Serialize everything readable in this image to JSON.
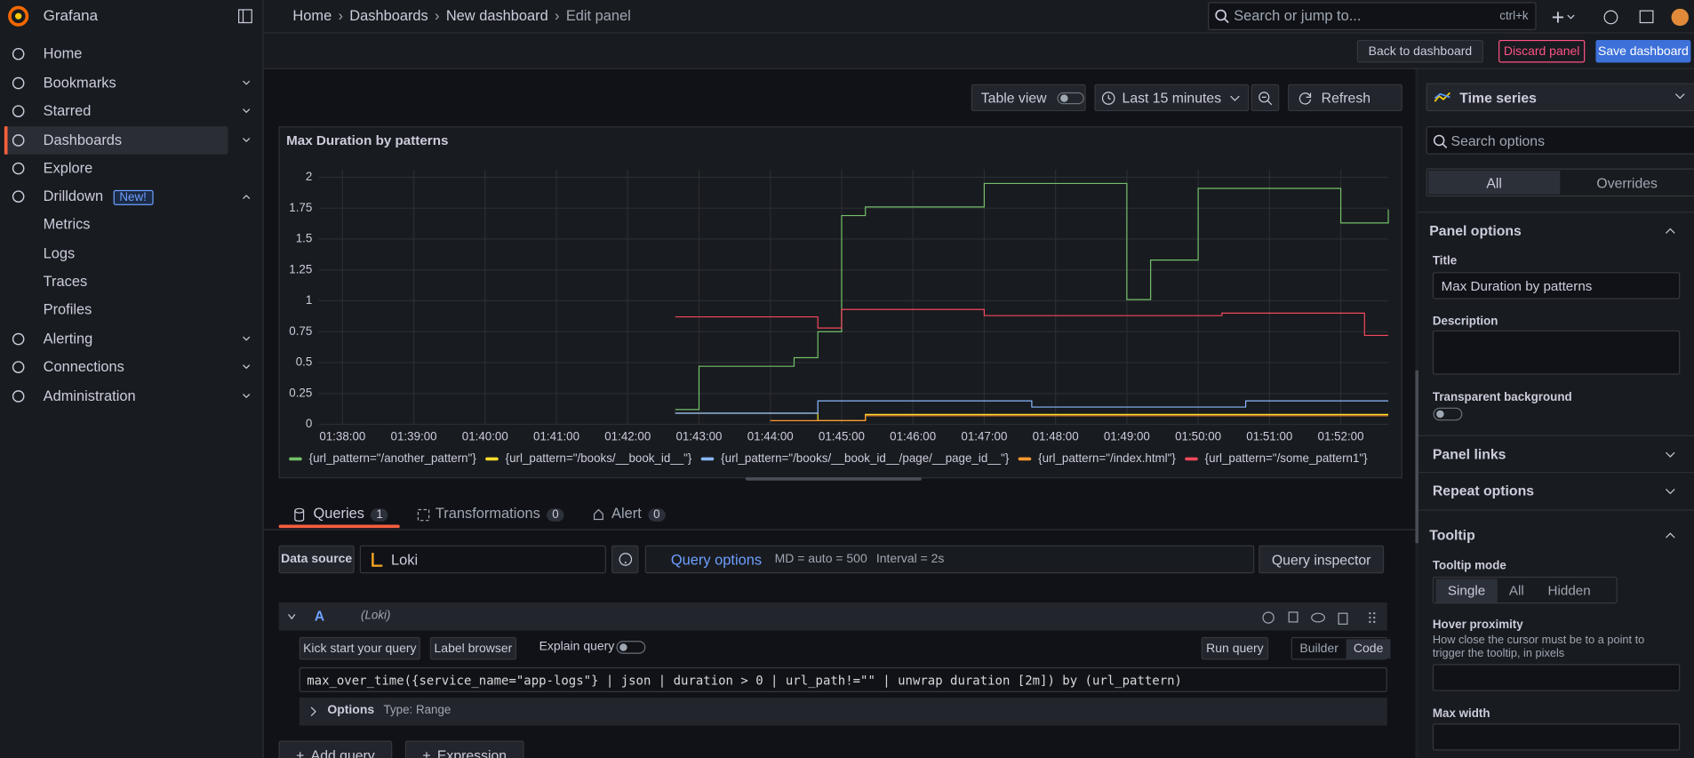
{
  "sidebar": {
    "brand": "Grafana",
    "items": [
      "Home",
      "Bookmarks",
      "Starred",
      "Dashboards",
      "Explore",
      "Drilldown",
      "Metrics",
      "Logs",
      "Traces",
      "Profiles",
      "Alerting",
      "Connections",
      "Administration"
    ],
    "badge": "New!"
  },
  "topbar": {
    "breadcrumbs": [
      "Home",
      "Dashboards",
      "New dashboard",
      "Edit panel"
    ],
    "search": "Search or jump to...",
    "shortcut": "ctrl+k"
  },
  "actions": {
    "back": "Back to dashboard",
    "discard": "Discard panel",
    "save": "Save dashboard"
  },
  "panel_toolbar": {
    "table_view": "Table view",
    "time_range": "Last 15 minutes",
    "refresh": "Refresh"
  },
  "chart_data": {
    "type": "line",
    "title": "Max Duration by patterns",
    "line_interpolation": "stepAfter",
    "grid": true,
    "legend": "bottom-left",
    "x": [
      "01:42:40",
      "01:43:00",
      "01:43:20",
      "01:43:40",
      "01:44:00",
      "01:44:20",
      "01:44:40",
      "01:45:00",
      "01:45:20",
      "01:45:40",
      "01:46:00",
      "01:46:20",
      "01:46:40",
      "01:47:00",
      "01:47:20",
      "01:47:40",
      "01:48:00",
      "01:48:20",
      "01:48:40",
      "01:49:00",
      "01:49:20",
      "01:49:40",
      "01:50:00",
      "01:50:20",
      "01:50:40",
      "01:51:00",
      "01:51:20",
      "01:51:40",
      "01:52:00",
      "01:52:20",
      "01:52:40"
    ],
    "xlim": [
      "01:37:40",
      "01:52:40"
    ],
    "xticks": [
      "01:38:00",
      "01:39:00",
      "01:40:00",
      "01:41:00",
      "01:42:00",
      "01:43:00",
      "01:44:00",
      "01:45:00",
      "01:46:00",
      "01:47:00",
      "01:48:00",
      "01:49:00",
      "01:50:00",
      "01:51:00",
      "01:52:00"
    ],
    "ylim": [
      0,
      2.15
    ],
    "yticks": [
      0,
      0.25,
      0.5,
      0.75,
      1,
      1.25,
      1.5,
      1.75,
      2
    ],
    "series": [
      {
        "name": "{url_pattern=\"/another_pattern\"}",
        "color": "#73bf69",
        "values": [
          0.12,
          0.47,
          0.47,
          0.47,
          0.47,
          0.54,
          0.75,
          1.69,
          1.76,
          1.76,
          1.76,
          1.76,
          1.76,
          1.95,
          1.95,
          1.95,
          1.95,
          1.95,
          1.95,
          1.01,
          1.33,
          1.33,
          1.91,
          1.91,
          1.91,
          1.91,
          1.91,
          1.91,
          1.63,
          1.63,
          1.74
        ]
      },
      {
        "name": "{url_pattern=\"/books/__book_id__\"}",
        "color": "#fade2a",
        "values": [
          0.09,
          0.09,
          0.09,
          0.09,
          0.09,
          0.09,
          0.03,
          0.03,
          0.08,
          0.08,
          0.08,
          0.08,
          0.08,
          0.08,
          0.08,
          0.08,
          0.08,
          0.08,
          0.08,
          0.08,
          0.08,
          0.08,
          0.08,
          0.08,
          0.08,
          0.08,
          0.08,
          0.08,
          0.08,
          0.08,
          0.08
        ]
      },
      {
        "name": "{url_pattern=\"/books/__book_id__/page/__page_id__\"}",
        "color": "#8ab8ff",
        "values": [
          0.09,
          0.09,
          0.09,
          0.09,
          0.09,
          0.09,
          0.19,
          0.19,
          0.19,
          0.19,
          0.19,
          0.19,
          0.19,
          0.19,
          0.19,
          0.14,
          0.14,
          0.14,
          0.14,
          0.14,
          0.14,
          0.14,
          0.14,
          0.14,
          0.19,
          0.19,
          0.19,
          0.19,
          0.19,
          0.19,
          0.19
        ]
      },
      {
        "name": "{url_pattern=\"/index.html\"}",
        "color": "#ff9830",
        "values": [
          null,
          null,
          null,
          null,
          0.03,
          0.03,
          0.03,
          0.03,
          0.07,
          0.07,
          0.07,
          0.07,
          0.07,
          0.07,
          0.07,
          0.07,
          0.07,
          0.07,
          0.07,
          0.07,
          0.07,
          0.07,
          0.07,
          0.07,
          0.07,
          0.07,
          0.07,
          0.07,
          0.07,
          0.07,
          0.07
        ]
      },
      {
        "name": "{url_pattern=\"/some_pattern1\"}",
        "color": "#f2495c",
        "values": [
          0.87,
          0.87,
          0.87,
          0.87,
          0.87,
          0.87,
          0.78,
          0.93,
          0.93,
          0.93,
          0.93,
          0.93,
          0.93,
          0.88,
          0.88,
          0.88,
          0.88,
          0.88,
          0.88,
          0.88,
          0.88,
          0.88,
          0.88,
          0.9,
          0.9,
          0.9,
          0.9,
          0.9,
          0.9,
          0.72,
          0.72
        ]
      }
    ]
  },
  "tabs": [
    {
      "label": "Queries",
      "count": 1
    },
    {
      "label": "Transformations",
      "count": 0
    },
    {
      "label": "Alert",
      "count": 0
    }
  ],
  "query_header": {
    "data_source_label": "Data source",
    "data_source": "Loki",
    "query_options": "Query options",
    "md": "MD = auto = 500",
    "interval": "Interval = 2s",
    "inspector": "Query inspector"
  },
  "query": {
    "ref": "A",
    "source": "(Loki)",
    "kick_start": "Kick start your query",
    "label_browser": "Label browser",
    "explain": "Explain query",
    "run": "Run query",
    "modes": [
      "Builder",
      "Code"
    ],
    "expr": "max_over_time({service_name=\"app-logs\"} | json | duration > 0 | url_path!=\"\" | unwrap duration [2m]) by (url_pattern)",
    "options": "Options",
    "options_type": "Type: Range"
  },
  "add_buttons": [
    "Add query",
    "Expression"
  ],
  "options_pane": {
    "visualization": "Time series",
    "search": "Search options",
    "tabs": [
      "All",
      "Overrides"
    ],
    "panel_options": "Panel options",
    "title_label": "Title",
    "title_value": "Max Duration by patterns",
    "description_label": "Description",
    "transparent_label": "Transparent background",
    "panel_links": "Panel links",
    "repeat_options": "Repeat options",
    "tooltip": "Tooltip",
    "tooltip_mode_label": "Tooltip mode",
    "tooltip_modes": [
      "Single",
      "All",
      "Hidden"
    ],
    "hover_proximity": "Hover proximity",
    "hover_help": "How close the cursor must be to a point to trigger the tooltip, in pixels",
    "max_width": "Max width"
  }
}
